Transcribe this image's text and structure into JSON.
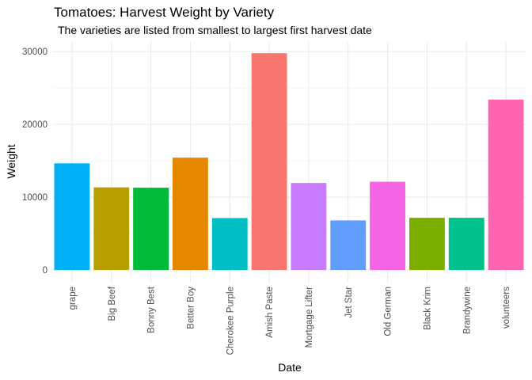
{
  "chart_data": {
    "type": "bar",
    "title": "Tomatoes: Harvest Weight by Variety",
    "subtitle": "The varieties are listed from smallest to largest first harvest date",
    "xlabel": "Date",
    "ylabel": "Weight",
    "ylim": [
      0,
      31500
    ],
    "yticks": [
      0,
      10000,
      20000,
      30000
    ],
    "grid": true,
    "legend": "none",
    "categories": [
      "grape",
      "Big Beef",
      "Bonny Best",
      "Better Boy",
      "Cherokee Purple",
      "Amish Paste",
      "Mortgage Lifter",
      "Jet Star",
      "Old German",
      "Black Krim",
      "Brandywine",
      "volunteers"
    ],
    "values": [
      14650,
      11350,
      11300,
      15430,
      7130,
      29790,
      11950,
      6810,
      12120,
      7170,
      7170,
      23410
    ],
    "colors": [
      "#00B0F6",
      "#B79F00",
      "#00BA38",
      "#E58700",
      "#00BFC4",
      "#F8766D",
      "#C77CFF",
      "#619CFF",
      "#F564E3",
      "#7CAE00",
      "#00C08B",
      "#FF64B0"
    ]
  }
}
